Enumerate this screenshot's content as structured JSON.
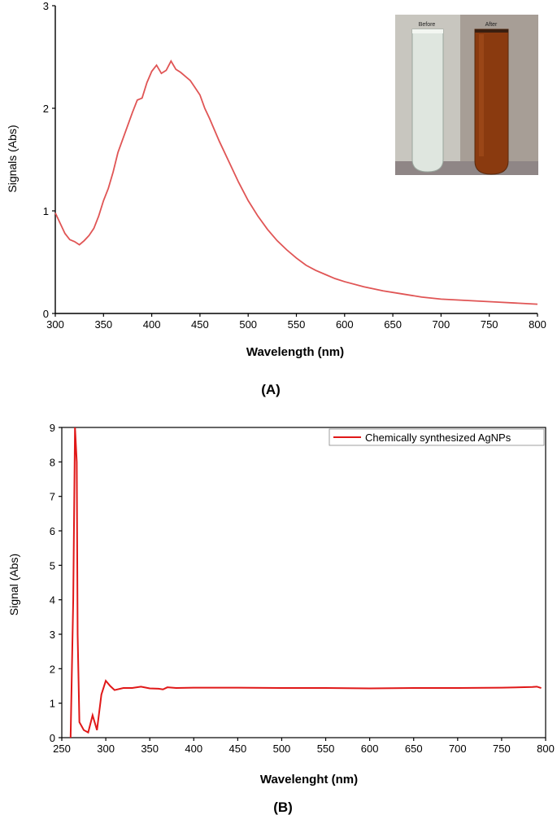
{
  "chart_data": [
    {
      "type": "line",
      "panel_label": "(A)",
      "xlabel": "Wavelength (nm)",
      "ylabel": "Signals (Abs)",
      "xlim": [
        300,
        800
      ],
      "ylim": [
        0,
        3
      ],
      "xticks": [
        300,
        350,
        400,
        450,
        500,
        550,
        600,
        650,
        700,
        750,
        800
      ],
      "yticks": [
        0,
        1,
        2,
        3
      ],
      "grid": false,
      "line_color": "#e05555",
      "series": [
        {
          "x": [
            300,
            305,
            310,
            315,
            320,
            325,
            330,
            335,
            340,
            345,
            350,
            355,
            360,
            365,
            370,
            375,
            380,
            385,
            390,
            395,
            400,
            405,
            410,
            415,
            420,
            425,
            430,
            435,
            440,
            445,
            450,
            455,
            460,
            465,
            470,
            480,
            490,
            500,
            510,
            520,
            530,
            540,
            550,
            560,
            570,
            580,
            590,
            600,
            620,
            640,
            660,
            680,
            700,
            720,
            740,
            760,
            780,
            800
          ],
          "values": [
            0.98,
            0.88,
            0.78,
            0.72,
            0.7,
            0.67,
            0.71,
            0.76,
            0.83,
            0.95,
            1.1,
            1.22,
            1.38,
            1.57,
            1.7,
            1.83,
            1.96,
            2.08,
            2.1,
            2.25,
            2.36,
            2.42,
            2.34,
            2.37,
            2.46,
            2.38,
            2.35,
            2.31,
            2.27,
            2.2,
            2.13,
            2.0,
            1.9,
            1.79,
            1.68,
            1.48,
            1.28,
            1.1,
            0.95,
            0.82,
            0.71,
            0.62,
            0.54,
            0.47,
            0.42,
            0.38,
            0.34,
            0.31,
            0.26,
            0.22,
            0.19,
            0.16,
            0.14,
            0.13,
            0.12,
            0.11,
            0.1,
            0.09
          ]
        }
      ],
      "inset_photo": {
        "before_label": "Before",
        "after_label": "After"
      }
    },
    {
      "type": "line",
      "panel_label": "(B)",
      "xlabel": "Wavelenght (nm)",
      "ylabel": "Signal (Abs)",
      "xlim": [
        250,
        800
      ],
      "ylim": [
        0,
        9
      ],
      "xticks": [
        250,
        300,
        350,
        400,
        450,
        500,
        550,
        600,
        650,
        700,
        750,
        800
      ],
      "yticks": [
        0,
        1,
        2,
        3,
        4,
        5,
        6,
        7,
        8,
        9
      ],
      "grid": false,
      "legend_position": "top-right",
      "line_color": "#e01818",
      "series": [
        {
          "name": "Chemically synthesized AgNPs",
          "x": [
            260,
            263,
            265,
            267,
            268,
            270,
            275,
            280,
            285,
            290,
            295,
            300,
            305,
            310,
            320,
            330,
            340,
            350,
            360,
            365,
            370,
            380,
            400,
            450,
            500,
            550,
            600,
            650,
            700,
            750,
            785,
            790,
            795
          ],
          "values": [
            0.0,
            4.0,
            9.0,
            8.0,
            3.0,
            0.45,
            0.22,
            0.15,
            0.65,
            0.22,
            1.25,
            1.65,
            1.5,
            1.38,
            1.44,
            1.44,
            1.48,
            1.43,
            1.42,
            1.4,
            1.46,
            1.44,
            1.45,
            1.45,
            1.44,
            1.44,
            1.43,
            1.44,
            1.44,
            1.45,
            1.47,
            1.48,
            1.44
          ]
        }
      ]
    }
  ]
}
